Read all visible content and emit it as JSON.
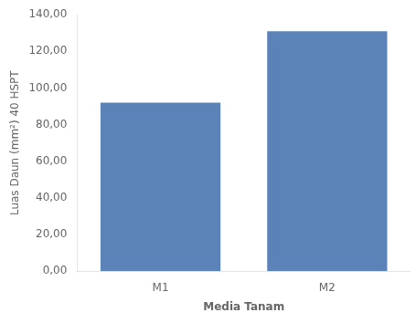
{
  "chart_data": {
    "type": "bar",
    "categories": [
      "M1",
      "M2"
    ],
    "values": [
      92.0,
      131.0
    ],
    "color": "#5b83b8",
    "xlabel": "Media Tanam",
    "ylabel": "Luas Daun (mm²) 40 HSPT",
    "ylim": [
      0,
      140
    ],
    "yticks": [
      {
        "value": 0,
        "label": "0,00"
      },
      {
        "value": 20,
        "label": "20,00"
      },
      {
        "value": 40,
        "label": "40,00"
      },
      {
        "value": 60,
        "label": "60,00"
      },
      {
        "value": 80,
        "label": "80,00"
      },
      {
        "value": 100,
        "label": "100,00"
      },
      {
        "value": 120,
        "label": "120,00"
      },
      {
        "value": 140,
        "label": "140,00"
      }
    ],
    "grid": false
  }
}
